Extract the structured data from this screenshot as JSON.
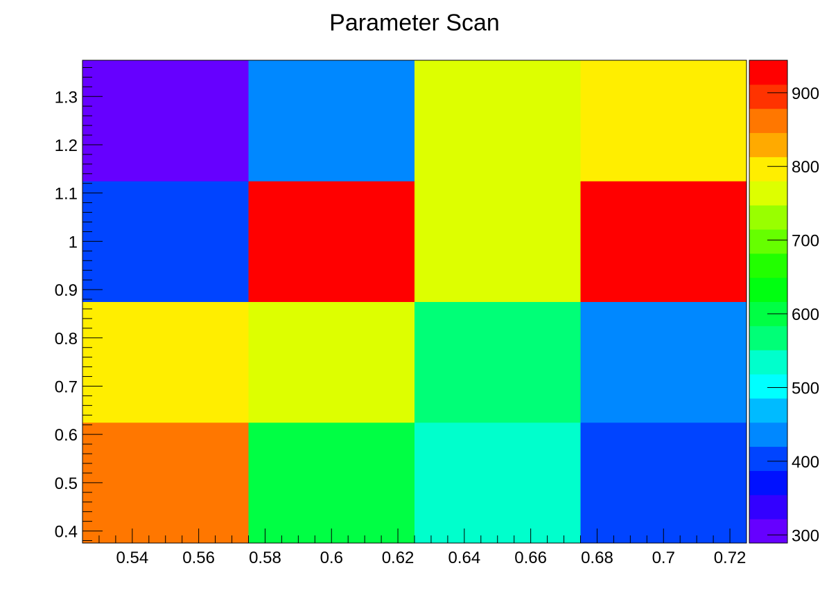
{
  "chart_data": {
    "type": "heatmap",
    "title": "Parameter Scan",
    "xlabel": "",
    "ylabel": "",
    "x_bin_edges": [
      0.525,
      0.575,
      0.625,
      0.675,
      0.725
    ],
    "y_bin_edges": [
      0.375,
      0.625,
      0.875,
      1.125,
      1.375
    ],
    "x_centers": [
      0.55,
      0.6,
      0.65,
      0.7
    ],
    "y_centers": [
      0.5,
      0.75,
      1.0,
      1.25
    ],
    "values": [
      [
        862,
        600,
        535,
        404
      ],
      [
        797,
        764,
        567,
        436
      ],
      [
        404,
        935,
        764,
        944
      ],
      [
        290,
        436,
        764,
        797
      ]
    ],
    "xlim": [
      0.525,
      0.725
    ],
    "ylim": [
      0.375,
      1.375
    ],
    "zlim": [
      289,
      944
    ],
    "x_ticks": [
      "0.54",
      "0.56",
      "0.58",
      "0.6",
      "0.62",
      "0.64",
      "0.66",
      "0.68",
      "0.7",
      "0.72"
    ],
    "y_ticks": [
      "0.4",
      "0.5",
      "0.6",
      "0.7",
      "0.8",
      "0.9",
      "1",
      "1.1",
      "1.2",
      "1.3"
    ],
    "z_ticks": [
      "300",
      "400",
      "500",
      "600",
      "700",
      "800",
      "900"
    ],
    "palette": [
      "#6600ff",
      "#3300ff",
      "#0011ff",
      "#0044ff",
      "#0088ff",
      "#00bbff",
      "#00ffff",
      "#00ffcc",
      "#00ff77",
      "#00ff44",
      "#00ff11",
      "#22ff00",
      "#66ff00",
      "#99ff00",
      "#ddff00",
      "#ffee00",
      "#ffaa00",
      "#ff7700",
      "#ff3300",
      "#ff0000"
    ],
    "colorbar": "right",
    "grid": false
  }
}
